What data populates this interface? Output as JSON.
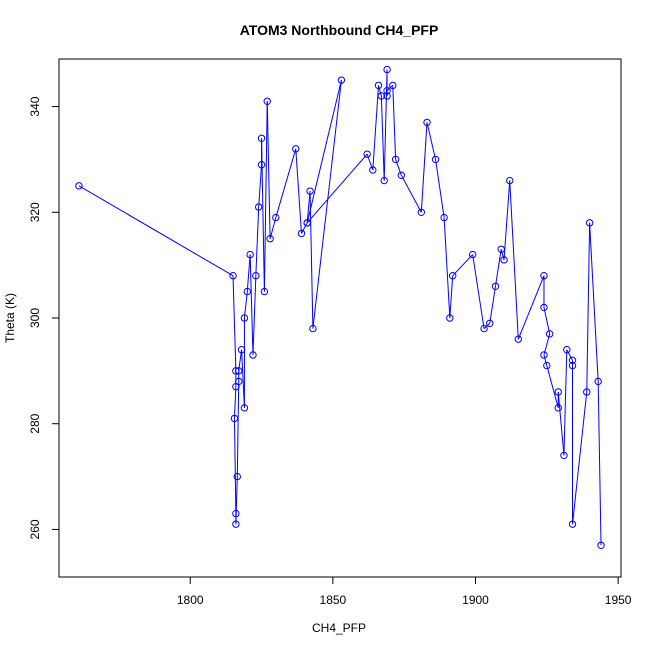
{
  "chart_data": {
    "type": "line",
    "title": "ATOM3 Northbound CH4_PFP",
    "xlabel": "CH4_PFP",
    "ylabel": "Theta (K)",
    "xlim": [
      1754,
      1951
    ],
    "ylim": [
      251,
      349
    ],
    "xticks": [
      1800,
      1850,
      1900,
      1950
    ],
    "yticks": [
      260,
      280,
      300,
      320,
      340
    ],
    "grid": false,
    "legend": "none",
    "series_color": "#0000ff",
    "marker": "open-circle",
    "points": [
      [
        1761,
        325
      ],
      [
        1815,
        308
      ],
      [
        1816,
        290
      ],
      [
        1816,
        287
      ],
      [
        1815.5,
        281
      ],
      [
        1816,
        263
      ],
      [
        1816,
        261
      ],
      [
        1816.5,
        270
      ],
      [
        1817,
        288
      ],
      [
        1817,
        290
      ],
      [
        1818,
        294
      ],
      [
        1819,
        283
      ],
      [
        1819,
        300
      ],
      [
        1820,
        305
      ],
      [
        1821,
        312
      ],
      [
        1822,
        293
      ],
      [
        1823,
        308
      ],
      [
        1824,
        321
      ],
      [
        1825,
        329
      ],
      [
        1825,
        334
      ],
      [
        1826,
        305
      ],
      [
        1827,
        341
      ],
      [
        1828,
        315
      ],
      [
        1830,
        319
      ],
      [
        1837,
        332
      ],
      [
        1839,
        316
      ],
      [
        1841,
        318
      ],
      [
        1842,
        324
      ],
      [
        1843,
        298
      ],
      [
        1853,
        345
      ],
      [
        1841,
        318
      ],
      [
        1862,
        331
      ],
      [
        1864,
        328
      ],
      [
        1866,
        344
      ],
      [
        1867,
        342
      ],
      [
        1868,
        326
      ],
      [
        1869,
        347
      ],
      [
        1869,
        342
      ],
      [
        1869,
        343
      ],
      [
        1871,
        344
      ],
      [
        1872,
        330
      ],
      [
        1874,
        327
      ],
      [
        1881,
        320
      ],
      [
        1883,
        337
      ],
      [
        1886,
        330
      ],
      [
        1889,
        319
      ],
      [
        1891,
        300
      ],
      [
        1892,
        308
      ],
      [
        1899,
        312
      ],
      [
        1903,
        298
      ],
      [
        1905,
        299
      ],
      [
        1907,
        306
      ],
      [
        1909,
        313
      ],
      [
        1910,
        311
      ],
      [
        1912,
        326
      ],
      [
        1915,
        296
      ],
      [
        1924,
        308
      ],
      [
        1924,
        302
      ],
      [
        1926,
        297
      ],
      [
        1924,
        293
      ],
      [
        1925,
        291
      ],
      [
        1929,
        283
      ],
      [
        1929,
        286
      ],
      [
        1931,
        274
      ],
      [
        1932,
        294
      ],
      [
        1934,
        292
      ],
      [
        1934,
        291
      ],
      [
        1934,
        261
      ],
      [
        1939,
        286
      ],
      [
        1940,
        318
      ],
      [
        1943,
        288
      ],
      [
        1944,
        257
      ]
    ]
  }
}
